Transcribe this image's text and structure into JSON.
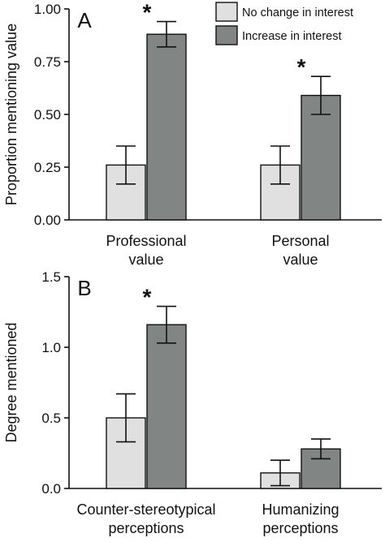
{
  "colors": {
    "no_change": "#e0e0e0",
    "increase": "#818584",
    "ink": "#111111"
  },
  "legend": {
    "items": [
      {
        "label": "No change in interest",
        "color": "#e0e0e0"
      },
      {
        "label": "Increase in interest",
        "color": "#818584"
      }
    ],
    "placement": "top-right"
  },
  "chart_data": [
    {
      "type": "bar",
      "panel_label": "A",
      "ylabel": "Proportion mentioning value",
      "ylim": [
        0,
        1.0
      ],
      "yticks": [
        0,
        0.25,
        0.5,
        0.75,
        1.0
      ],
      "ytick_labels": [
        "0.00",
        "0.25",
        "0.50",
        "0.75",
        "1.00"
      ],
      "categories": [
        [
          "Professional",
          "value"
        ],
        [
          "Personal",
          "value"
        ]
      ],
      "series": [
        {
          "name": "No change in interest",
          "values": [
            0.26,
            0.26
          ],
          "errors": [
            0.09,
            0.09
          ]
        },
        {
          "name": "Increase in interest",
          "values": [
            0.88,
            0.59
          ],
          "errors": [
            0.06,
            0.09
          ]
        }
      ],
      "annotations": [
        {
          "text": "*",
          "category": 0,
          "series": 1
        },
        {
          "text": "*",
          "category": 1,
          "series": 1
        }
      ],
      "grid": false
    },
    {
      "type": "bar",
      "panel_label": "B",
      "ylabel": "Degree mentioned",
      "ylim": [
        0,
        1.5
      ],
      "yticks": [
        0,
        0.5,
        1.0,
        1.5
      ],
      "ytick_labels": [
        "0.0",
        "0.5",
        "1.0",
        "1.5"
      ],
      "categories": [
        [
          "Counter-stereotypical",
          "perceptions"
        ],
        [
          "Humanizing",
          "perceptions"
        ]
      ],
      "series": [
        {
          "name": "No change in interest",
          "values": [
            0.5,
            0.11
          ],
          "errors": [
            0.17,
            0.09
          ]
        },
        {
          "name": "Increase in interest",
          "values": [
            1.16,
            0.28
          ],
          "errors": [
            0.13,
            0.07
          ]
        }
      ],
      "annotations": [
        {
          "text": "*",
          "category": 0,
          "series": 1
        }
      ],
      "grid": false
    }
  ]
}
